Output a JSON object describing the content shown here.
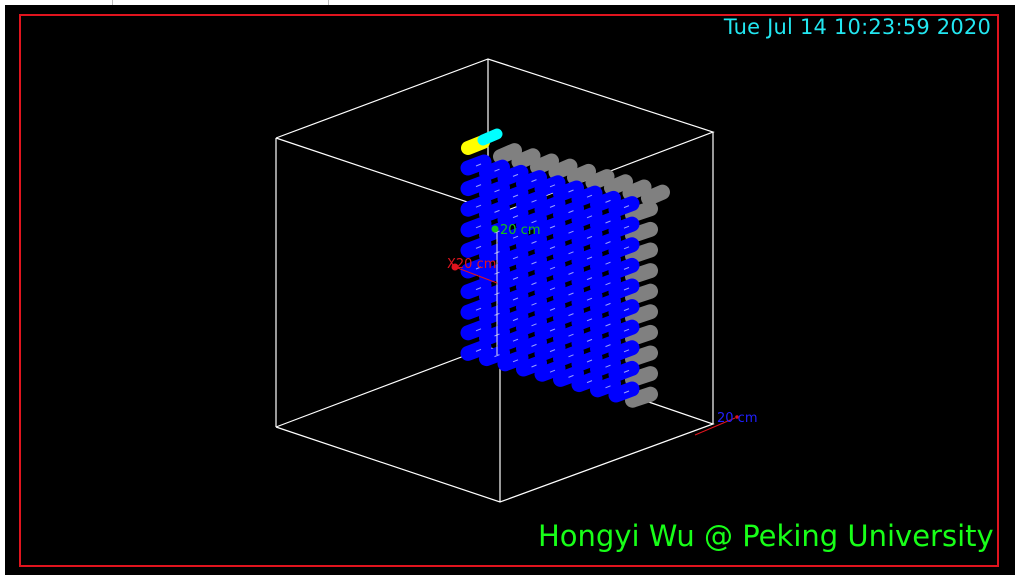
{
  "viewer": {
    "timestamp": "Tue Jul 14 10:23:59 2020",
    "credit": "Hongyi Wu @ Peking University"
  },
  "axes": {
    "y_axis_label": "20 cm",
    "x_axis_label": "X20 cm",
    "z_axis_label": "20 cm"
  },
  "colors": {
    "background": "#000000",
    "frame": "#e0141e",
    "timestamp": "#22e6f0",
    "credit": "#18ff18",
    "world_box": "#ffffff",
    "crystal": "#0000ff",
    "crystal_side": "#808080",
    "highlight_yellow": "#ffff00",
    "highlight_cyan": "#00ffff",
    "x_axis": "#e0141e",
    "y_axis": "#18c018",
    "z_axis": "#2020ff"
  },
  "detector": {
    "rows": 10,
    "columns": 9,
    "highlighted_crystals": [
      "yellow",
      "cyan"
    ]
  }
}
